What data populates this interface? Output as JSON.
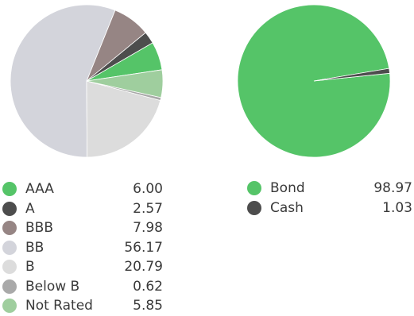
{
  "chart_data": [
    {
      "type": "pie",
      "title": "",
      "slices": [
        {
          "label": "AAA",
          "value": "6.00",
          "color": "#55c468"
        },
        {
          "label": "A",
          "value": "2.57",
          "color": "#4d4d4d"
        },
        {
          "label": "BBB",
          "value": "7.98",
          "color": "#968584"
        },
        {
          "label": "BB",
          "value": "56.17",
          "color": "#d3d4db"
        },
        {
          "label": "B",
          "value": "20.79",
          "color": "#dcdcdc"
        },
        {
          "label": "Below B",
          "value": "0.62",
          "color": "#a9a9a9"
        },
        {
          "label": "Not Rated",
          "value": "5.85",
          "color": "#9fce9e"
        }
      ],
      "legend": "below"
    },
    {
      "type": "pie",
      "title": "",
      "slices": [
        {
          "label": "Bond",
          "value": "98.97",
          "color": "#55c468"
        },
        {
          "label": "Cash",
          "value": "1.03",
          "color": "#4d4d4d"
        }
      ],
      "legend": "below"
    }
  ]
}
